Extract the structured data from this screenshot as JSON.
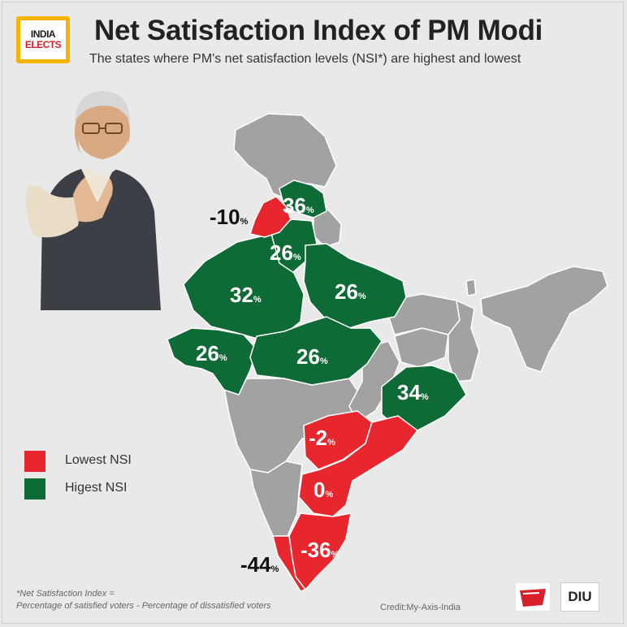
{
  "header": {
    "logo_line1": "INDIA",
    "logo_line2": "ELECTS",
    "title": "Net Satisfaction Index of PM Modi",
    "subtitle": "The states where PM's net satisfaction levels (NSI*) are highest and lowest"
  },
  "colors": {
    "lowest": "#e8262d",
    "highest": "#0f6b35",
    "neutral": "#a2a2a2",
    "background": "#e9e9ea"
  },
  "states": [
    {
      "name": "Punjab",
      "nsi": "-10",
      "unit": "%",
      "category": "lowest"
    },
    {
      "name": "Himachal Pradesh",
      "nsi": "36",
      "unit": "%",
      "category": "highest"
    },
    {
      "name": "Haryana",
      "nsi": "26",
      "unit": "%",
      "category": "highest"
    },
    {
      "name": "Rajasthan",
      "nsi": "32",
      "unit": "%",
      "category": "highest"
    },
    {
      "name": "Uttar Pradesh",
      "nsi": "26",
      "unit": "%",
      "category": "highest"
    },
    {
      "name": "Gujarat",
      "nsi": "26",
      "unit": "%",
      "category": "highest"
    },
    {
      "name": "Madhya Pradesh",
      "nsi": "26",
      "unit": "%",
      "category": "highest"
    },
    {
      "name": "Odisha",
      "nsi": "34",
      "unit": "%",
      "category": "highest"
    },
    {
      "name": "Telangana",
      "nsi": "-2",
      "unit": "%",
      "category": "lowest"
    },
    {
      "name": "Andhra Pradesh",
      "nsi": "0",
      "unit": "%",
      "category": "lowest"
    },
    {
      "name": "Tamil Nadu",
      "nsi": "-36",
      "unit": "%",
      "category": "lowest"
    },
    {
      "name": "Kerala",
      "nsi": "-44",
      "unit": "%",
      "category": "lowest"
    }
  ],
  "legend": [
    {
      "label": "Lowest NSI",
      "color": "#e8262d"
    },
    {
      "label": "Higest NSI",
      "color": "#0f6b35"
    }
  ],
  "footnote": {
    "line1": "*Net Satisfaction Index =",
    "line2": "Percentage of satisfied voters - Percentage of dissatisfied voters"
  },
  "credit": "Credit:My-Axis-India",
  "brand": {
    "diu": "DIU"
  }
}
